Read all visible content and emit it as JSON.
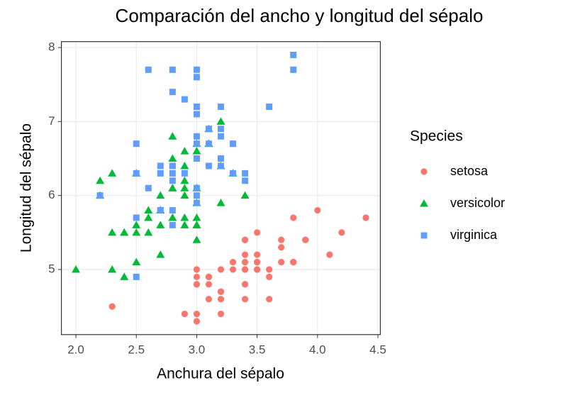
{
  "chart_data": {
    "type": "scatter",
    "title": "Comparación del ancho y longitud del sépalo",
    "x_label": "Anchura del sépalo",
    "y_label": "Longitud del sépalo",
    "legend_title": "Species",
    "legend": "right",
    "grid": true,
    "xlim": [
      1.88,
      4.52
    ],
    "ylim": [
      4.12,
      8.08
    ],
    "xticks": [
      {
        "value": 2,
        "label": "2.0"
      },
      {
        "value": 2.5,
        "label": "2.5"
      },
      {
        "value": 3,
        "label": "3.0"
      },
      {
        "value": 3.5,
        "label": "3.5"
      },
      {
        "value": 4,
        "label": "4.0"
      },
      {
        "value": 4.5,
        "label": "4.5"
      }
    ],
    "yticks": [
      5,
      6,
      7,
      8
    ],
    "series": [
      {
        "name": "setosa",
        "color": "#F8766D",
        "shape": "circle",
        "x": [
          3.5,
          3.0,
          3.2,
          3.1,
          3.6,
          3.9,
          3.4,
          3.4,
          2.9,
          3.1,
          3.7,
          3.4,
          3.0,
          3.0,
          4.0,
          4.4,
          3.9,
          3.5,
          3.8,
          3.8,
          3.4,
          3.7,
          3.6,
          3.3,
          3.4,
          3.0,
          3.4,
          3.5,
          3.4,
          3.2,
          3.1,
          3.4,
          4.1,
          4.2,
          3.1,
          3.2,
          3.5,
          3.6,
          3.0,
          3.4,
          3.5,
          2.3,
          3.2,
          3.5,
          3.8,
          3.0,
          3.8,
          3.2,
          3.7,
          3.3
        ],
        "values": [
          5.1,
          4.9,
          4.7,
          4.6,
          5.0,
          5.4,
          4.6,
          5.0,
          4.4,
          4.9,
          5.4,
          4.8,
          4.8,
          4.3,
          5.8,
          5.7,
          5.4,
          5.1,
          5.7,
          5.1,
          5.4,
          5.1,
          4.6,
          5.1,
          4.8,
          5.0,
          5.0,
          5.2,
          5.2,
          4.7,
          4.8,
          5.4,
          5.2,
          5.5,
          4.9,
          5.0,
          5.5,
          4.9,
          4.4,
          5.1,
          5.0,
          4.5,
          4.4,
          5.0,
          5.1,
          4.8,
          5.1,
          4.6,
          5.3,
          5.0
        ]
      },
      {
        "name": "versicolor",
        "color": "#00BA38",
        "shape": "triangle",
        "x": [
          3.2,
          3.2,
          3.1,
          2.3,
          2.8,
          2.8,
          3.3,
          2.4,
          2.9,
          2.7,
          2.0,
          3.0,
          2.2,
          2.9,
          2.9,
          3.1,
          3.0,
          2.7,
          2.2,
          2.5,
          3.2,
          2.8,
          2.5,
          2.8,
          2.9,
          3.0,
          2.8,
          3.0,
          2.9,
          2.6,
          2.4,
          2.4,
          2.7,
          2.7,
          3.0,
          3.4,
          3.1,
          2.3,
          3.0,
          2.5,
          2.6,
          3.0,
          2.6,
          2.3,
          2.7,
          3.0,
          2.9,
          2.9,
          2.5,
          2.8
        ],
        "values": [
          7.0,
          6.4,
          6.9,
          5.5,
          6.5,
          5.7,
          6.3,
          4.9,
          6.6,
          5.2,
          5.0,
          5.9,
          6.0,
          6.1,
          5.6,
          6.7,
          5.6,
          5.8,
          6.2,
          5.6,
          5.9,
          6.1,
          6.3,
          6.1,
          6.4,
          6.6,
          6.8,
          6.7,
          6.0,
          5.7,
          5.5,
          5.5,
          5.8,
          6.0,
          5.4,
          6.0,
          6.7,
          6.3,
          5.6,
          5.5,
          5.5,
          6.1,
          5.8,
          5.0,
          5.6,
          5.7,
          5.7,
          6.2,
          5.1,
          5.7
        ]
      },
      {
        "name": "virginica",
        "color": "#619CFF",
        "shape": "square",
        "x": [
          3.3,
          2.7,
          3.0,
          2.9,
          3.0,
          3.0,
          2.5,
          2.9,
          2.5,
          3.6,
          3.2,
          2.7,
          3.0,
          2.5,
          2.8,
          3.2,
          3.0,
          3.8,
          2.6,
          2.2,
          3.2,
          2.8,
          2.8,
          2.7,
          3.3,
          3.2,
          2.8,
          3.0,
          2.8,
          3.0,
          2.8,
          3.8,
          2.8,
          2.8,
          2.6,
          3.0,
          3.4,
          3.1,
          3.0,
          3.1,
          3.1,
          3.1,
          2.7,
          3.2,
          3.3,
          3.0,
          2.5,
          3.0,
          3.4,
          3.0
        ],
        "values": [
          6.3,
          5.8,
          7.1,
          6.3,
          6.5,
          7.6,
          4.9,
          7.3,
          6.7,
          7.2,
          6.5,
          6.4,
          6.8,
          5.7,
          5.8,
          6.4,
          6.5,
          7.7,
          7.7,
          6.0,
          6.9,
          5.6,
          7.7,
          6.3,
          6.7,
          7.2,
          6.2,
          6.1,
          6.4,
          7.2,
          7.4,
          7.9,
          6.4,
          6.3,
          6.1,
          7.7,
          6.3,
          6.4,
          6.0,
          6.9,
          6.7,
          6.9,
          5.8,
          6.8,
          6.7,
          6.7,
          6.3,
          6.5,
          6.2,
          5.9
        ]
      }
    ]
  }
}
